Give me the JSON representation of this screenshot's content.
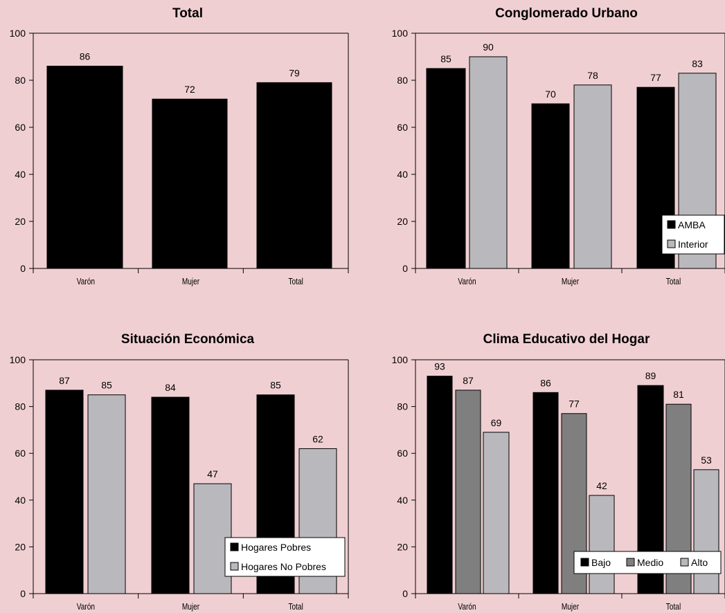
{
  "colors": {
    "background": "#f0cfd2",
    "plot_area": "#f0cfd2",
    "black_series": "#000000",
    "dark_gray_series": "#7f7f7f",
    "light_gray_series": "#b9b9bd"
  },
  "chart_data": [
    {
      "type": "bar",
      "title": "Total",
      "categories": [
        "Varón",
        "Mujer",
        "Total"
      ],
      "series": [
        {
          "values": [
            86,
            72,
            79
          ],
          "color": "#000000"
        }
      ],
      "ylim": [
        0,
        100
      ],
      "yticks": [
        0,
        20,
        40,
        60,
        80,
        100
      ],
      "legend": null
    },
    {
      "type": "bar",
      "title": "Conglomerado Urbano",
      "categories": [
        "Varón",
        "Mujer",
        "Total"
      ],
      "series": [
        {
          "name": "AMBA",
          "values": [
            85,
            70,
            77
          ],
          "color": "#000000"
        },
        {
          "name": "Interior",
          "values": [
            90,
            78,
            83
          ],
          "color": "#b9b9bd"
        }
      ],
      "ylim": [
        0,
        100
      ],
      "yticks": [
        0,
        20,
        40,
        60,
        80,
        100
      ],
      "legend": "bottom-right-vertical"
    },
    {
      "type": "bar",
      "title": "Situación Económica",
      "categories": [
        "Varón",
        "Mujer",
        "Total"
      ],
      "series": [
        {
          "name": "Hogares Pobres",
          "values": [
            87,
            84,
            85
          ],
          "color": "#000000"
        },
        {
          "name": "Hogares No Pobres",
          "values": [
            85,
            47,
            62
          ],
          "color": "#b9b9bd"
        }
      ],
      "ylim": [
        0,
        100
      ],
      "yticks": [
        0,
        20,
        40,
        60,
        80,
        100
      ],
      "legend": "bottom-right-vertical"
    },
    {
      "type": "bar",
      "title": "Clima Educativo del Hogar",
      "categories": [
        "Varón",
        "Mujer",
        "Total"
      ],
      "series": [
        {
          "name": "Bajo",
          "values": [
            93,
            86,
            89
          ],
          "color": "#000000"
        },
        {
          "name": "Medio",
          "values": [
            87,
            77,
            81
          ],
          "color": "#7f7f7f"
        },
        {
          "name": "Alto",
          "values": [
            69,
            42,
            53
          ],
          "color": "#b9b9bd"
        }
      ],
      "ylim": [
        0,
        100
      ],
      "yticks": [
        0,
        20,
        40,
        60,
        80,
        100
      ],
      "legend": "bottom-right-horizontal"
    }
  ]
}
